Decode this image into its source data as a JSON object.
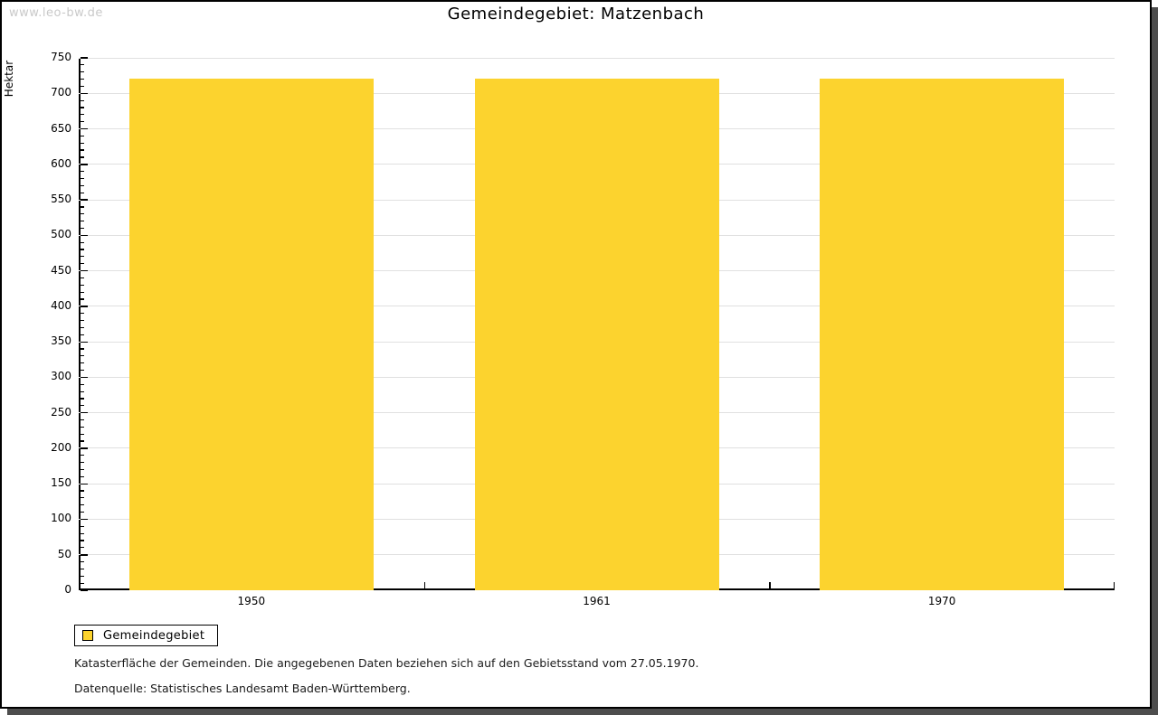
{
  "watermark": "www.leo-bw.de",
  "header": {
    "title": "Gemeindegebiet: Matzenbach"
  },
  "chart_data": {
    "type": "bar",
    "title": "Gemeindegebiet: Matzenbach",
    "categories": [
      "1950",
      "1961",
      "1970"
    ],
    "series": [
      {
        "name": "Gemeindegebiet",
        "values": [
          721,
          721,
          721
        ],
        "color": "#FCD32E"
      }
    ],
    "xlabel": "",
    "ylabel": "Hektar",
    "ylim": [
      0,
      750
    ],
    "y_major_step": 50,
    "y_minor_step": 10,
    "grid": true,
    "grid_color": "#e0e0e0",
    "axis_color": "#000000",
    "legend_position": "bottom-left"
  },
  "legend": {
    "items": [
      {
        "label": "Gemeindegebiet",
        "color": "#FCD32E"
      }
    ]
  },
  "notes": [
    "Katasterfläche der Gemeinden. Die angegebenen Daten beziehen sich auf den Gebietsstand vom 27.05.1970.",
    "Datenquelle: Statistisches Landesamt Baden-Württemberg."
  ]
}
